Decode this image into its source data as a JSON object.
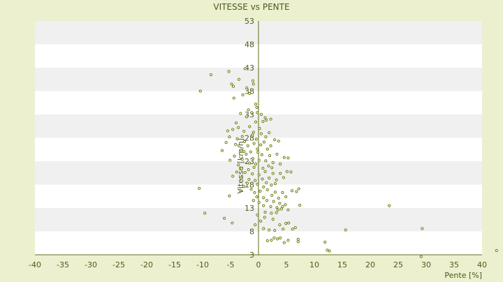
{
  "chart_data": {
    "type": "scatter",
    "title": "VITESSE vs PENTE",
    "xlabel": "Pente [%]",
    "ylabel": "Vitesse [km/h]",
    "xlim": [
      -40,
      40
    ],
    "ylim": [
      3,
      53
    ],
    "x_ticks": [
      -40,
      -35,
      -30,
      -25,
      -20,
      -15,
      -10,
      -5,
      0,
      5,
      10,
      15,
      20,
      25,
      30,
      35,
      40
    ],
    "y_ticks": [
      3,
      8,
      13,
      18,
      23,
      28,
      33,
      38,
      43,
      48,
      53
    ],
    "grid": "horizontal bands",
    "colors": {
      "background": "#ecf0cf",
      "band_light": "#ffffff",
      "band_dark": "#f0f0f0",
      "marker": "#6b7f10",
      "axis": "#5f6e1a",
      "text": "#4a5a1e"
    },
    "series": [
      {
        "points": [
          [
            -10.4,
            38.0
          ],
          [
            -8.5,
            41.5
          ],
          [
            -5.3,
            42.2
          ],
          [
            -4.8,
            39.5
          ],
          [
            -4.5,
            39.0
          ],
          [
            -3.5,
            40.5
          ],
          [
            -2.4,
            42.8
          ],
          [
            -2.1,
            38.7
          ],
          [
            -4.4,
            36.5
          ],
          [
            -2.8,
            37.2
          ],
          [
            -1.6,
            37.5
          ],
          [
            -1.0,
            40.2
          ],
          [
            -0.9,
            39.5
          ],
          [
            -4.0,
            31.2
          ],
          [
            -3.2,
            33.2
          ],
          [
            -2.1,
            32.5
          ],
          [
            -1.8,
            34.0
          ],
          [
            -0.5,
            35.2
          ],
          [
            -0.3,
            34.5
          ],
          [
            -1.2,
            33.4
          ],
          [
            -5.5,
            29.5
          ],
          [
            -5.2,
            28.2
          ],
          [
            -5.8,
            27.0
          ],
          [
            -4.6,
            29.8
          ],
          [
            -3.6,
            30.2
          ],
          [
            -2.6,
            29.4
          ],
          [
            -1.6,
            30.4
          ],
          [
            -0.9,
            29.2
          ],
          [
            -0.5,
            31.4
          ],
          [
            0.2,
            30.0
          ],
          [
            0.8,
            31.5
          ],
          [
            1.2,
            32.3
          ],
          [
            1.4,
            31.8
          ],
          [
            2.2,
            32.0
          ],
          [
            0.5,
            33.0
          ],
          [
            -0.2,
            33.4
          ],
          [
            -6.5,
            25.3
          ],
          [
            -4.1,
            26.6
          ],
          [
            -3.1,
            25.4
          ],
          [
            -2.5,
            27.2
          ],
          [
            -1.9,
            26.3
          ],
          [
            -1.4,
            25.0
          ],
          [
            -0.8,
            26.8
          ],
          [
            -0.2,
            25.6
          ],
          [
            0.4,
            26.5
          ],
          [
            1.0,
            27.1
          ],
          [
            1.6,
            25.6
          ],
          [
            2.2,
            26.3
          ],
          [
            2.9,
            27.6
          ],
          [
            3.6,
            27.3
          ],
          [
            1.3,
            28.2
          ],
          [
            -1.1,
            28.6
          ],
          [
            -2.9,
            28.3
          ],
          [
            0.5,
            28.9
          ],
          [
            1.9,
            29.1
          ],
          [
            -3.8,
            27.8
          ],
          [
            -0.4,
            27.7
          ],
          [
            -5.1,
            23.2
          ],
          [
            -4.3,
            24.1
          ],
          [
            -3.6,
            22.2
          ],
          [
            -2.9,
            23.4
          ],
          [
            -2.2,
            24.5
          ],
          [
            -1.6,
            22.6
          ],
          [
            -1.0,
            23.6
          ],
          [
            -0.5,
            22.4
          ],
          [
            0.1,
            23.2
          ],
          [
            0.6,
            24.4
          ],
          [
            1.3,
            23.1
          ],
          [
            2.0,
            24.2
          ],
          [
            2.6,
            22.7
          ],
          [
            3.3,
            24.5
          ],
          [
            3.9,
            22.4
          ],
          [
            4.6,
            23.8
          ],
          [
            5.3,
            23.7
          ],
          [
            -0.8,
            21.7
          ],
          [
            0.8,
            21.5
          ],
          [
            1.8,
            22.0
          ],
          [
            -1.8,
            21.2
          ],
          [
            -3.0,
            21.4
          ],
          [
            2.4,
            21.6
          ],
          [
            -0.1,
            24.9
          ],
          [
            -2.6,
            25.1
          ],
          [
            -4.6,
            19.8
          ],
          [
            -3.9,
            20.7
          ],
          [
            -3.1,
            19.4
          ],
          [
            -2.4,
            20.6
          ],
          [
            -1.7,
            19.1
          ],
          [
            -1.1,
            20.3
          ],
          [
            -0.6,
            18.9
          ],
          [
            0.1,
            20.1
          ],
          [
            0.7,
            19.2
          ],
          [
            1.2,
            20.8
          ],
          [
            1.9,
            19.4
          ],
          [
            2.6,
            20.4
          ],
          [
            3.2,
            19.0
          ],
          [
            3.9,
            20.4
          ],
          [
            4.5,
            19.5
          ],
          [
            5.1,
            20.8
          ],
          [
            5.8,
            20.7
          ],
          [
            -2.0,
            18.3
          ],
          [
            -0.2,
            18.1
          ],
          [
            1.4,
            18.4
          ],
          [
            2.3,
            17.9
          ],
          [
            3.0,
            18.2
          ],
          [
            -10.6,
            17.2
          ],
          [
            -5.2,
            15.6
          ],
          [
            -3.3,
            16.8
          ],
          [
            -2.6,
            17.6
          ],
          [
            -1.3,
            17.0
          ],
          [
            -0.3,
            15.4
          ],
          [
            0.3,
            16.6
          ],
          [
            0.9,
            15.2
          ],
          [
            1.6,
            16.9
          ],
          [
            2.4,
            15.7
          ],
          [
            3.0,
            16.4
          ],
          [
            3.6,
            15.1
          ],
          [
            4.3,
            16.3
          ],
          [
            4.9,
            15.4
          ],
          [
            6.0,
            16.7
          ],
          [
            6.8,
            16.5
          ],
          [
            7.2,
            17.1
          ],
          [
            -0.7,
            16.3
          ],
          [
            0.9,
            17.5
          ],
          [
            -0.9,
            14.6
          ],
          [
            0.1,
            14.2
          ],
          [
            0.9,
            13.5
          ],
          [
            1.5,
            14.6
          ],
          [
            2.2,
            13.3
          ],
          [
            2.7,
            14.4
          ],
          [
            3.3,
            13.1
          ],
          [
            3.8,
            14.0
          ],
          [
            4.3,
            13.3
          ],
          [
            4.8,
            13.7
          ],
          [
            3.5,
            12.6
          ],
          [
            4.1,
            12.8
          ],
          [
            5.3,
            12.6
          ],
          [
            7.4,
            13.6
          ],
          [
            1.2,
            12.1
          ],
          [
            2.3,
            11.9
          ],
          [
            3.2,
            12.0
          ],
          [
            23.4,
            13.5
          ],
          [
            -9.6,
            11.9
          ],
          [
            -6.1,
            10.8
          ],
          [
            -4.7,
            9.8
          ],
          [
            -0.6,
            9.4
          ],
          [
            0.4,
            10.2
          ],
          [
            0.9,
            8.6
          ],
          [
            1.9,
            8.3
          ],
          [
            2.9,
            8.2
          ],
          [
            3.8,
            9.4
          ],
          [
            4.4,
            8.5
          ],
          [
            4.9,
            9.7
          ],
          [
            5.4,
            9.8
          ],
          [
            6.1,
            8.5
          ],
          [
            6.6,
            8.8
          ],
          [
            15.6,
            8.3
          ],
          [
            29.3,
            8.6
          ],
          [
            -0.2,
            11.5
          ],
          [
            1.1,
            11.0
          ],
          [
            2.6,
            10.6
          ],
          [
            1.6,
            6.0
          ],
          [
            2.3,
            6.1
          ],
          [
            2.8,
            6.6
          ],
          [
            3.4,
            6.4
          ],
          [
            3.9,
            6.6
          ],
          [
            4.6,
            5.6
          ],
          [
            5.3,
            6.1
          ],
          [
            7.1,
            6.3
          ],
          [
            7.1,
            5.8
          ],
          [
            11.9,
            5.7
          ],
          [
            12.3,
            4.0
          ],
          [
            12.7,
            3.8
          ],
          [
            29.1,
            2.6
          ],
          [
            42.6,
            3.9
          ]
        ]
      }
    ]
  }
}
